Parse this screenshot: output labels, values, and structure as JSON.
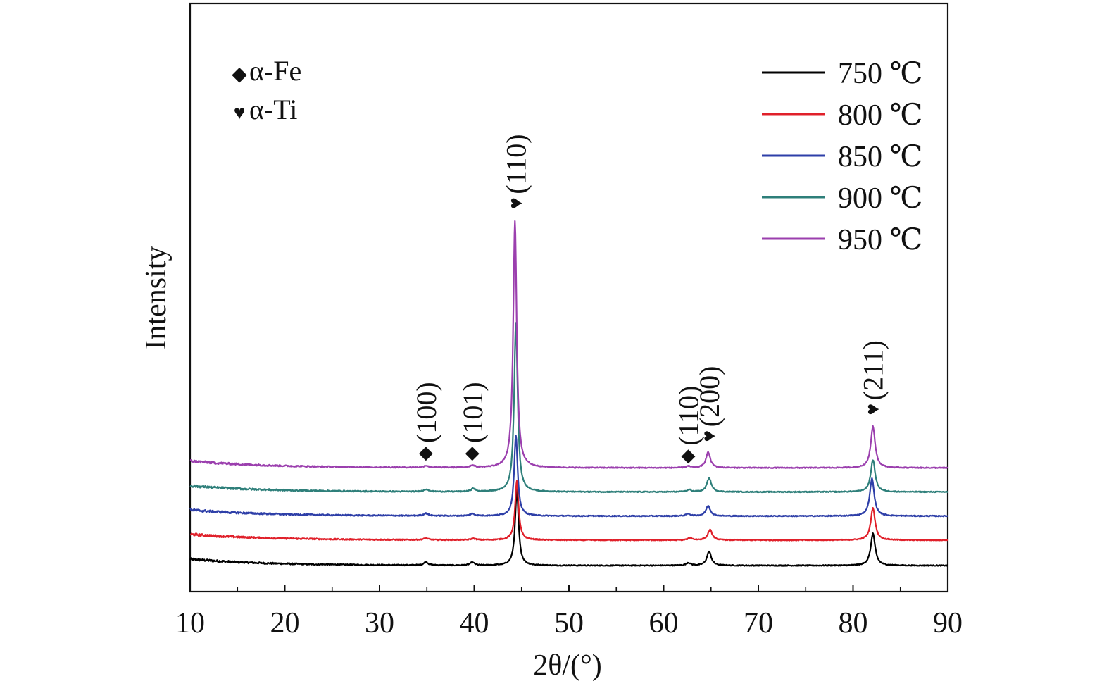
{
  "chart_data": {
    "type": "line",
    "xlabel": "2θ/(°)",
    "ylabel": "Intensity",
    "xlim": [
      10,
      90
    ],
    "xticks": [
      10,
      20,
      30,
      40,
      50,
      60,
      70,
      80,
      90
    ],
    "ylim": [
      0,
      100
    ],
    "grid": false,
    "legend_position": "top-right",
    "y_ticks_shown": false,
    "series": [
      {
        "name": "750 ℃",
        "color": "#000000",
        "baseline": 10,
        "start_offset": 2.4,
        "peaks": [
          [
            34.9,
            1.2
          ],
          [
            39.8,
            1.1
          ],
          [
            44.5,
            28
          ],
          [
            62.6,
            1.0
          ],
          [
            64.8,
            5.2
          ],
          [
            82.1,
            12
          ]
        ]
      },
      {
        "name": "800 ℃",
        "color": "#e0202a",
        "baseline": 19.5,
        "start_offset": 2.2,
        "peaks": [
          [
            34.9,
            0.6
          ],
          [
            39.9,
            0.5
          ],
          [
            44.5,
            22
          ],
          [
            62.8,
            0.8
          ],
          [
            64.9,
            3.8
          ],
          [
            82.1,
            12
          ]
        ]
      },
      {
        "name": "850 ℃",
        "color": "#2e3fa8",
        "baseline": 28.5,
        "start_offset": 2.3,
        "peaks": [
          [
            34.9,
            0.9
          ],
          [
            39.8,
            0.8
          ],
          [
            44.4,
            30
          ],
          [
            62.6,
            0.8
          ],
          [
            64.7,
            3.8
          ],
          [
            82.0,
            14
          ]
        ]
      },
      {
        "name": "900 ℃",
        "color": "#2e7f7a",
        "baseline": 37.5,
        "start_offset": 2.3,
        "peaks": [
          [
            34.9,
            0.9
          ],
          [
            39.9,
            1.1
          ],
          [
            44.4,
            63
          ],
          [
            62.7,
            0.8
          ],
          [
            64.8,
            5.2
          ],
          [
            82.1,
            12
          ]
        ]
      },
      {
        "name": "950 ℃",
        "color": "#9b3fae",
        "baseline": 46.5,
        "start_offset": 2.6,
        "peaks": [
          [
            34.9,
            0.7
          ],
          [
            39.8,
            0.8
          ],
          [
            44.3,
            92
          ],
          [
            62.6,
            0.6
          ],
          [
            64.7,
            5.8
          ],
          [
            82.1,
            15.5
          ]
        ]
      }
    ],
    "phase_legend": [
      {
        "symbol": "◆",
        "label": "α-Fe"
      },
      {
        "symbol": "♥",
        "label": "α-Ti"
      }
    ],
    "peak_annotations": [
      {
        "label": "(100)",
        "symbol": "◆",
        "x": 34.9,
        "y": 50
      },
      {
        "label": "(101)",
        "symbol": "◆",
        "x": 39.8,
        "y": 50
      },
      {
        "label": "(110)",
        "symbol": "♥",
        "x": 44.4,
        "y": 143
      },
      {
        "label": "(110)",
        "symbol": "◆",
        "x": 62.6,
        "y": 49
      },
      {
        "label": "(200)",
        "symbol": "♥",
        "x": 64.8,
        "y": 56
      },
      {
        "label": "(211)",
        "symbol": "♥",
        "x": 82.1,
        "y": 66
      }
    ]
  }
}
